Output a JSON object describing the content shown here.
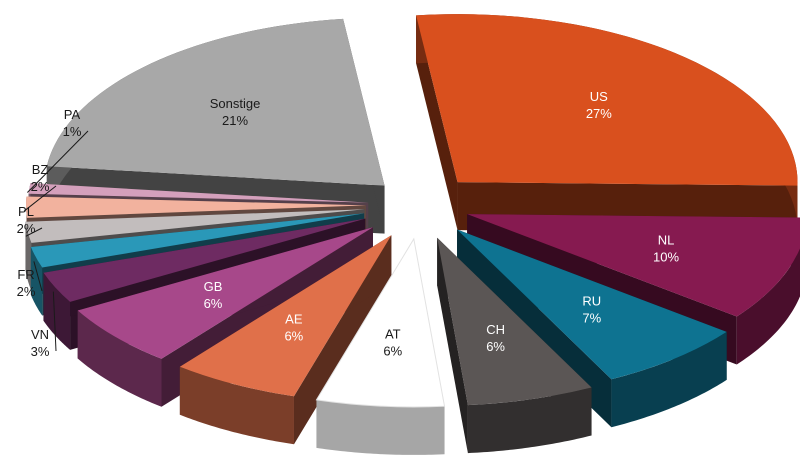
{
  "chart_data": {
    "type": "pie",
    "style": "3d-exploded",
    "title": "",
    "slices": [
      {
        "label": "US",
        "value": 27,
        "value_label": "27%",
        "color": "#d9501e",
        "text_color": "#ffffff"
      },
      {
        "label": "NL",
        "value": 10,
        "value_label": "10%",
        "color": "#861a50",
        "text_color": "#ffffff"
      },
      {
        "label": "RU",
        "value": 7,
        "value_label": "7%",
        "color": "#0e7391",
        "text_color": "#ffffff"
      },
      {
        "label": "CH",
        "value": 6,
        "value_label": "6%",
        "color": "#5b5655",
        "text_color": "#ffffff"
      },
      {
        "label": "AT",
        "value": 6,
        "value_label": "6%",
        "color": "#ffffff",
        "text_color": "#1a1a1a"
      },
      {
        "label": "AE",
        "value": 6,
        "value_label": "6%",
        "color": "#e0704a",
        "text_color": "#ffffff"
      },
      {
        "label": "GB",
        "value": 6,
        "value_label": "6%",
        "color": "#a7488a",
        "text_color": "#ffffff"
      },
      {
        "label": "VN",
        "value": 3,
        "value_label": "3%",
        "color": "#6e2b62",
        "text_color": "#1a1a1a"
      },
      {
        "label": "FR",
        "value": 2,
        "value_label": "2%",
        "color": "#2a98b8",
        "text_color": "#1a1a1a"
      },
      {
        "label": "PL",
        "value": 2,
        "value_label": "2%",
        "color": "#c2bdbd",
        "text_color": "#1a1a1a"
      },
      {
        "label": "BZ",
        "value": 2,
        "value_label": "2%",
        "color": "#f2b29e",
        "text_color": "#1a1a1a"
      },
      {
        "label": "PA",
        "value": 1,
        "value_label": "1%",
        "color": "#d4a0bc",
        "text_color": "#1a1a1a"
      },
      {
        "label": "Sonstige",
        "value": 21,
        "value_label": "21%",
        "color": "#a8a8a8",
        "text_color": "#1a1a1a"
      }
    ]
  }
}
